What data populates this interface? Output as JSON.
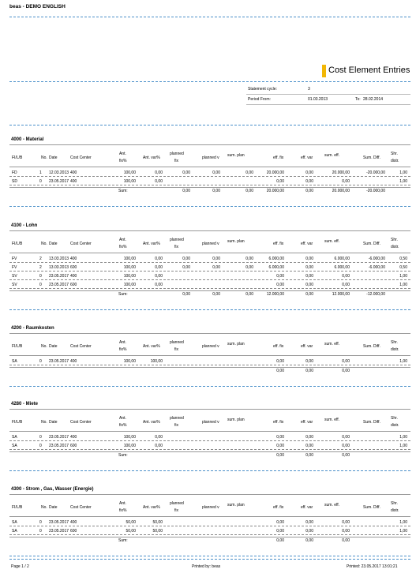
{
  "header": {
    "company": "beas - DEMO ENGLISH",
    "report_title": "Cost Element Entries",
    "statement_cycle_label": "Statement cycle:",
    "statement_cycle_value": "3",
    "period_from_label": "Period From:",
    "period_from_value": "01.03.2013",
    "to_label": "To:",
    "to_value": "28.02.2014"
  },
  "columns": [
    "FI/L/B",
    "No.",
    "Date",
    "Cost Center",
    "Ant.",
    "fix%",
    "Ant. var%",
    "planned",
    "fix",
    "planned v",
    "sum. plan",
    "eff. fix",
    "eff. var",
    "sum. eff.",
    "Sum. Diff.",
    "Shr.",
    "distr."
  ],
  "sections": [
    {
      "title": "4000  -  Material",
      "rows": [
        {
          "type": "FD",
          "no": "1",
          "date": "12.03.2013",
          "cc": "400",
          "ant_fix": "100,00",
          "ant_var": "0,00",
          "pfix": "0,00",
          "pvar": "0,00",
          "splan": "0,00",
          "efix": "20.000,00",
          "evar": "0,00",
          "seff": "20.000,00",
          "sdiff": "-20.000,00",
          "shr": "1,00"
        },
        {
          "type": "SD",
          "no": "0",
          "date": "23.05.2017",
          "cc": "400",
          "ant_fix": "100,00",
          "ant_var": "0,00",
          "pfix": "",
          "pvar": "",
          "splan": "",
          "efix": "0,00",
          "evar": "0,00",
          "seff": "0,00",
          "sdiff": "",
          "shr": "1,00"
        }
      ],
      "sum": {
        "label": "Sum:",
        "pfix": "0,00",
        "pvar": "0,00",
        "splan": "0,00",
        "efix": "20.000,00",
        "evar": "0,00",
        "seff": "20.000,00",
        "sdiff": "-20.000,00"
      }
    },
    {
      "title": "4100  -  Lohn",
      "rows": [
        {
          "type": "FV",
          "no": "2",
          "date": "13.03.2013",
          "cc": "400",
          "ant_fix": "100,00",
          "ant_var": "0,00",
          "pfix": "0,00",
          "pvar": "0,00",
          "splan": "0,00",
          "efix": "6.000,00",
          "evar": "0,00",
          "seff": "6.000,00",
          "sdiff": "-6.000,00",
          "shr": "0,50"
        },
        {
          "type": "FV",
          "no": "2",
          "date": "13.03.2013",
          "cc": "600",
          "ant_fix": "100,00",
          "ant_var": "0,00",
          "pfix": "0,00",
          "pvar": "0,00",
          "splan": "0,00",
          "efix": "6.000,00",
          "evar": "0,00",
          "seff": "6.000,00",
          "sdiff": "-6.000,00",
          "shr": "0,50"
        },
        {
          "type": "SV",
          "no": "0",
          "date": "23.05.2017",
          "cc": "400",
          "ant_fix": "100,00",
          "ant_var": "0,00",
          "pfix": "",
          "pvar": "",
          "splan": "",
          "efix": "0,00",
          "evar": "0,00",
          "seff": "0,00",
          "sdiff": "",
          "shr": "1,00"
        },
        {
          "type": "SV",
          "no": "0",
          "date": "23.05.2017",
          "cc": "600",
          "ant_fix": "100,00",
          "ant_var": "0,00",
          "pfix": "",
          "pvar": "",
          "splan": "",
          "efix": "0,00",
          "evar": "0,00",
          "seff": "0,00",
          "sdiff": "",
          "shr": "1,00"
        }
      ],
      "sum": {
        "label": "Sum:",
        "pfix": "0,00",
        "pvar": "0,00",
        "splan": "0,00",
        "efix": "12.000,00",
        "evar": "0,00",
        "seff": "12.000,00",
        "sdiff": "-12.000,00"
      }
    },
    {
      "title": "4200  -  Raumkosten",
      "rows": [
        {
          "type": "SA",
          "no": "0",
          "date": "23.05.2017",
          "cc": "400",
          "ant_fix": "100,00",
          "ant_var": "100,00",
          "pfix": "",
          "pvar": "",
          "splan": "",
          "efix": "0,00",
          "evar": "0,00",
          "seff": "0,00",
          "sdiff": "",
          "shr": "1,00"
        }
      ],
      "sum": {
        "label": "",
        "pfix": "",
        "pvar": "",
        "splan": "",
        "efix": "0,00",
        "evar": "0,00",
        "seff": "0,00",
        "sdiff": ""
      }
    },
    {
      "title": "4280  -  Miete",
      "rows": [
        {
          "type": "SA",
          "no": "0",
          "date": "23.05.2017",
          "cc": "400",
          "ant_fix": "100,00",
          "ant_var": "0,00",
          "pfix": "",
          "pvar": "",
          "splan": "",
          "efix": "0,00",
          "evar": "0,00",
          "seff": "0,00",
          "sdiff": "",
          "shr": "1,00"
        },
        {
          "type": "SA",
          "no": "0",
          "date": "23.05.2017",
          "cc": "600",
          "ant_fix": "100,00",
          "ant_var": "0,00",
          "pfix": "",
          "pvar": "",
          "splan": "",
          "efix": "0,00",
          "evar": "0,00",
          "seff": "0,00",
          "sdiff": "",
          "shr": "1,00"
        }
      ],
      "sum": {
        "label": "Sum:",
        "pfix": "",
        "pvar": "",
        "splan": "",
        "efix": "0,00",
        "evar": "0,00",
        "seff": "0,00",
        "sdiff": ""
      }
    },
    {
      "title": "4300  -  Strom , Gas, Wasser  (Energie)",
      "rows": [
        {
          "type": "SA",
          "no": "0",
          "date": "23.05.2017",
          "cc": "400",
          "ant_fix": "50,00",
          "ant_var": "50,00",
          "pfix": "",
          "pvar": "",
          "splan": "",
          "efix": "0,00",
          "evar": "0,00",
          "seff": "0,00",
          "sdiff": "",
          "shr": "1,00"
        },
        {
          "type": "SA",
          "no": "0",
          "date": "23.05.2017",
          "cc": "600",
          "ant_fix": "50,00",
          "ant_var": "50,00",
          "pfix": "",
          "pvar": "",
          "splan": "",
          "efix": "0,00",
          "evar": "0,00",
          "seff": "0,00",
          "sdiff": "",
          "shr": "1,00"
        }
      ],
      "sum": {
        "label": "Sum:",
        "pfix": "",
        "pvar": "",
        "splan": "",
        "efix": "0,00",
        "evar": "0,00",
        "seff": "0,00",
        "sdiff": ""
      }
    }
  ],
  "footer": {
    "page": "Page 1 / 2",
    "printed_by": "Printed by: beas",
    "printed_at": "Printed: 23.05.2017  13:01:21"
  }
}
